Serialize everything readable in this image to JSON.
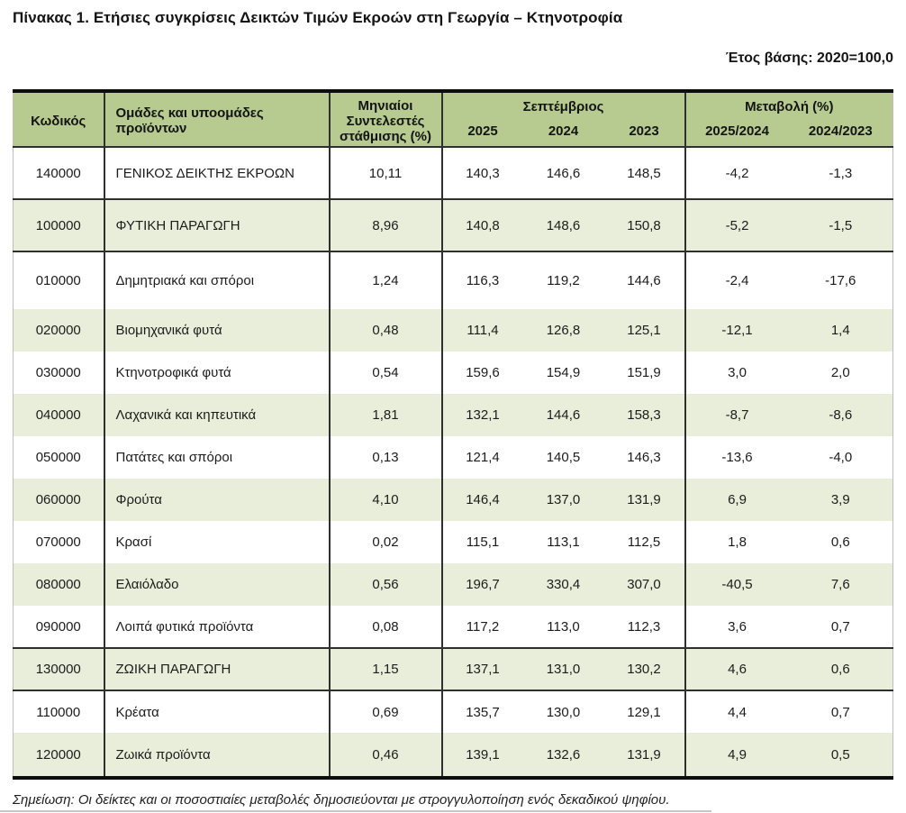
{
  "page": {
    "title": "Πίνακας 1. Ετήσιες συγκρίσεις Δεικτών Τιμών Εκροών στη Γεωργία – Κτηνοτροφία",
    "base_year_label": "Έτος βάσης: 2020=100,0",
    "note": "Σημείωση: Οι δείκτες και οι ποσοστιαίες μεταβολές δημοσιεύονται με στρογγυλοποίηση ενός δεκαδικού ψηφίου."
  },
  "table": {
    "headers": {
      "code": "Κωδικός",
      "groups": "Ομάδες και υποομάδες προϊόντων",
      "weights": "Μηνιαίοι Συντελεστές στάθμισης (%)",
      "month_group": "Σεπτέμβριος",
      "change_group": "Μεταβολή (%)",
      "years": [
        "2025",
        "2024",
        "2023"
      ],
      "change_cols": [
        "2025/2024",
        "2024/2023"
      ]
    },
    "rows": [
      {
        "code": "140000",
        "name": "ΓΕΝΙΚΟΣ ΔΕΙΚΤΗΣ ΕΚΡΟΩΝ",
        "weight": "10,11",
        "y2025": "140,3",
        "y2024": "146,6",
        "y2023": "148,5",
        "chg_2025_2024": "-4,2",
        "chg_2024_2023": "-1,3",
        "shade": "white",
        "section": false
      },
      {
        "code": "100000",
        "name": "ΦΥΤΙΚΗ ΠΑΡΑΓΩΓΗ",
        "weight": "8,96",
        "y2025": "140,8",
        "y2024": "148,6",
        "y2023": "150,8",
        "chg_2025_2024": "-5,2",
        "chg_2024_2023": "-1,5",
        "shade": "green",
        "section": true
      },
      {
        "code": "010000",
        "name": "Δημητριακά και σπόροι",
        "weight": "1,24",
        "y2025": "116,3",
        "y2024": "119,2",
        "y2023": "144,6",
        "chg_2025_2024": "-2,4",
        "chg_2024_2023": "-17,6",
        "shade": "white",
        "section": false
      },
      {
        "code": "020000",
        "name": "Βιομηχανικά φυτά",
        "weight": "0,48",
        "y2025": "111,4",
        "y2024": "126,8",
        "y2023": "125,1",
        "chg_2025_2024": "-12,1",
        "chg_2024_2023": "1,4",
        "shade": "green",
        "section": false
      },
      {
        "code": "030000",
        "name": "Κτηνοτροφικά φυτά",
        "weight": "0,54",
        "y2025": "159,6",
        "y2024": "154,9",
        "y2023": "151,9",
        "chg_2025_2024": "3,0",
        "chg_2024_2023": "2,0",
        "shade": "white",
        "section": false
      },
      {
        "code": "040000",
        "name": "Λαχανικά και κηπευτικά",
        "weight": "1,81",
        "y2025": "132,1",
        "y2024": "144,6",
        "y2023": "158,3",
        "chg_2025_2024": "-8,7",
        "chg_2024_2023": "-8,6",
        "shade": "green",
        "section": false
      },
      {
        "code": "050000",
        "name": "Πατάτες και σπόροι",
        "weight": "0,13",
        "y2025": "121,4",
        "y2024": "140,5",
        "y2023": "146,3",
        "chg_2025_2024": "-13,6",
        "chg_2024_2023": "-4,0",
        "shade": "white",
        "section": false
      },
      {
        "code": "060000",
        "name": "Φρούτα",
        "weight": "4,10",
        "y2025": "146,4",
        "y2024": "137,0",
        "y2023": "131,9",
        "chg_2025_2024": "6,9",
        "chg_2024_2023": "3,9",
        "shade": "green",
        "section": false
      },
      {
        "code": "070000",
        "name": "Κρασί",
        "weight": "0,02",
        "y2025": "115,1",
        "y2024": "113,1",
        "y2023": "112,5",
        "chg_2025_2024": "1,8",
        "chg_2024_2023": "0,6",
        "shade": "white",
        "section": false
      },
      {
        "code": "080000",
        "name": "Ελαιόλαδο",
        "weight": "0,56",
        "y2025": "196,7",
        "y2024": "330,4",
        "y2023": "307,0",
        "chg_2025_2024": "-40,5",
        "chg_2024_2023": "7,6",
        "shade": "green",
        "section": false
      },
      {
        "code": "090000",
        "name": "Λοιπά φυτικά προϊόντα",
        "weight": "0,08",
        "y2025": "117,2",
        "y2024": "113,0",
        "y2023": "112,3",
        "chg_2025_2024": "3,6",
        "chg_2024_2023": "0,7",
        "shade": "white",
        "section": false
      },
      {
        "code": "130000",
        "name": "ΖΩΙΚΗ ΠΑΡΑΓΩΓΗ",
        "weight": "1,15",
        "y2025": "137,1",
        "y2024": "131,0",
        "y2023": "130,2",
        "chg_2025_2024": "4,6",
        "chg_2024_2023": "0,6",
        "shade": "green",
        "section": true
      },
      {
        "code": "110000",
        "name": "Κρέατα",
        "weight": "0,69",
        "y2025": "135,7",
        "y2024": "130,0",
        "y2023": "129,1",
        "chg_2025_2024": "4,4",
        "chg_2024_2023": "0,7",
        "shade": "white",
        "section": false
      },
      {
        "code": "120000",
        "name": "Ζωικά προϊόντα",
        "weight": "0,46",
        "y2025": "139,1",
        "y2024": "132,6",
        "y2023": "131,9",
        "chg_2025_2024": "4,9",
        "chg_2024_2023": "0,5",
        "shade": "green",
        "section": false
      }
    ]
  },
  "colors": {
    "header_bg": "#b7cb90",
    "row_alt_bg": "#e9eeda",
    "border_dark": "#2f2f2f",
    "border_heavy": "#0d0d0d"
  }
}
